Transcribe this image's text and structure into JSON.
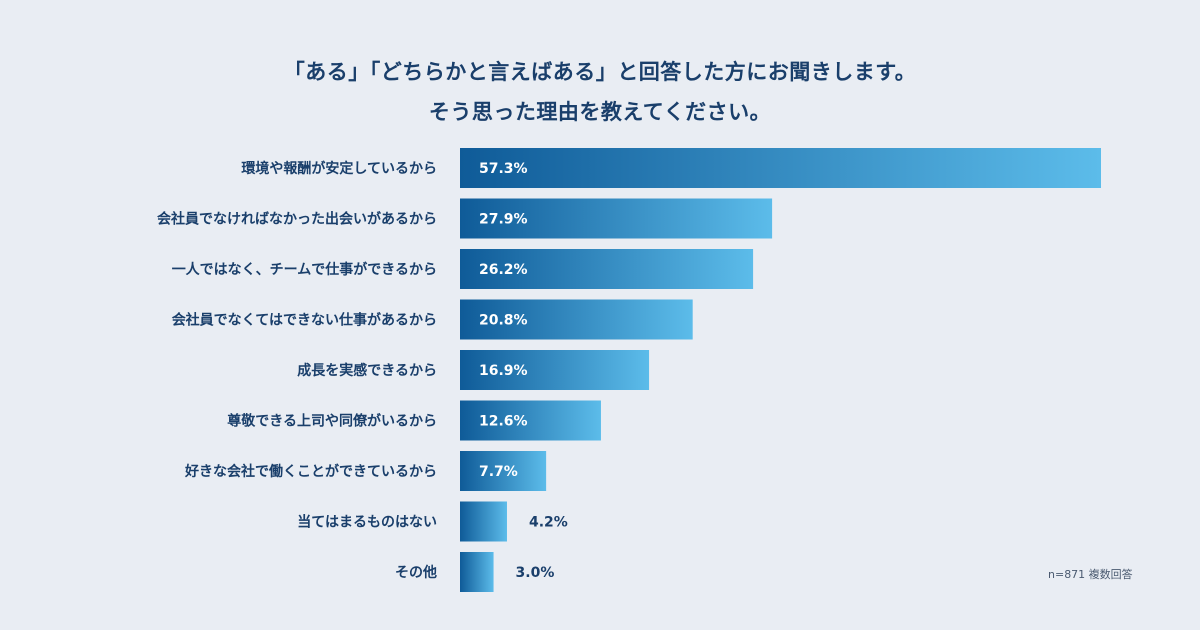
{
  "title_lines": [
    "「ある」「どちらかと言えばある」と回答した方にお聞きします。",
    "そう思った理由を教えてください。"
  ],
  "note": "n=871 複数回答",
  "colors": {
    "bar_start": "#0f5b98",
    "bar_end": "#5cbcea",
    "text": "#1a3f6b",
    "background": "#e9edf3"
  },
  "chart_data": {
    "type": "bar",
    "orientation": "horizontal",
    "title": "「ある」「どちらかと言えばある」と回答した方にお聞きします。そう思った理由を教えてください。",
    "categories": [
      "環境や報酬が安定しているから",
      "会社員でなければなかった出会いがあるから",
      "一人ではなく、チームで仕事ができるから",
      "会社員でなくてはできない仕事があるから",
      "成長を実感できるから",
      "尊敬できる上司や同僚がいるから",
      "好きな会社で働くことができているから",
      "当てはまるものはない",
      "その他"
    ],
    "values": [
      57.3,
      27.9,
      26.2,
      20.8,
      16.9,
      12.6,
      7.7,
      4.2,
      3.0
    ],
    "value_labels": [
      "57.3%",
      "27.9%",
      "26.2%",
      "20.8%",
      "16.9%",
      "12.6%",
      "7.7%",
      "4.2%",
      "3.0%"
    ],
    "unit": "%",
    "xlim": [
      0,
      57.3
    ],
    "grid": false,
    "legend": "none"
  }
}
